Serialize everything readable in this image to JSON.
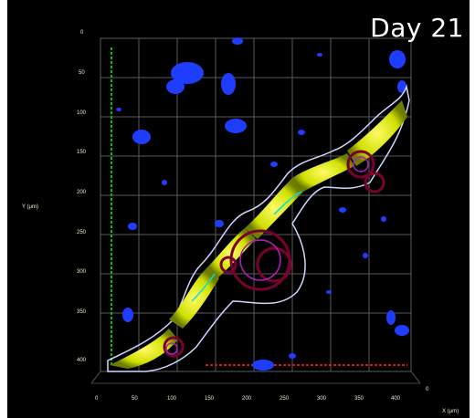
{
  "title": "Day 21",
  "axes": {
    "y_label": "Y (μm)",
    "x_label": "X (μm)",
    "z_label": "0",
    "y_ticks": [
      "0",
      "50",
      "100",
      "150",
      "200",
      "250",
      "300",
      "350",
      "400"
    ],
    "x_ticks": [
      "0",
      "50",
      "100",
      "150",
      "200",
      "250",
      "300",
      "350",
      "400"
    ]
  },
  "colors": {
    "background": "#000000",
    "nuclei": "#1f3dff",
    "cells": "#e6f000",
    "outline": "#cfd7ff",
    "vessel": "#7a0030",
    "y_axis": "#00c000",
    "x_axis": "#e01010",
    "grid": "#5a5a5a"
  }
}
